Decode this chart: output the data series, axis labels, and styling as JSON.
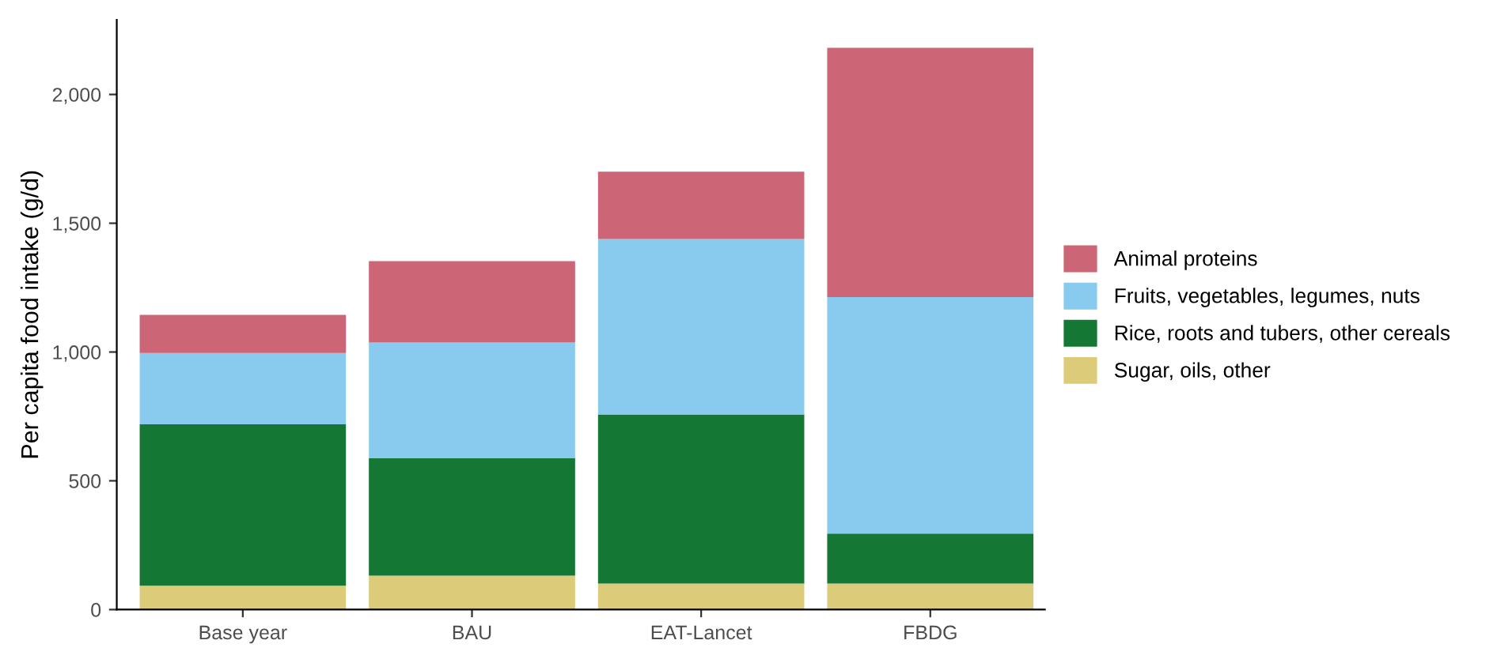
{
  "chart_data": {
    "type": "bar",
    "stacked": true,
    "ylabel": "Per capita food intake (g/d)",
    "categories": [
      "Base year",
      "BAU",
      "EAT-Lancet",
      "FBDG"
    ],
    "series": [
      {
        "name": "Sugar, oils, other",
        "color": "#dccb78",
        "values": [
          93,
          132,
          101,
          101
        ]
      },
      {
        "name": "Rice, roots and tubers, other cereals",
        "color": "#147734",
        "values": [
          626,
          455,
          657,
          194
        ]
      },
      {
        "name": "Fruits, vegetables, legumes, nuts",
        "color": "#89cbee",
        "values": [
          277,
          450,
          681,
          918
        ]
      },
      {
        "name": "Animal proteins",
        "color": "#cc6575",
        "values": [
          148,
          316,
          261,
          968
        ]
      }
    ],
    "ylim": [
      0,
      2290
    ],
    "yticks": [
      0,
      {
        "value": 500,
        "label": "500"
      },
      {
        "value": 1000,
        "label": "1,000"
      },
      {
        "value": 1500,
        "label": "1,500"
      },
      {
        "value": 2000,
        "label": "2,000"
      }
    ],
    "grid": false,
    "legend": "right"
  }
}
